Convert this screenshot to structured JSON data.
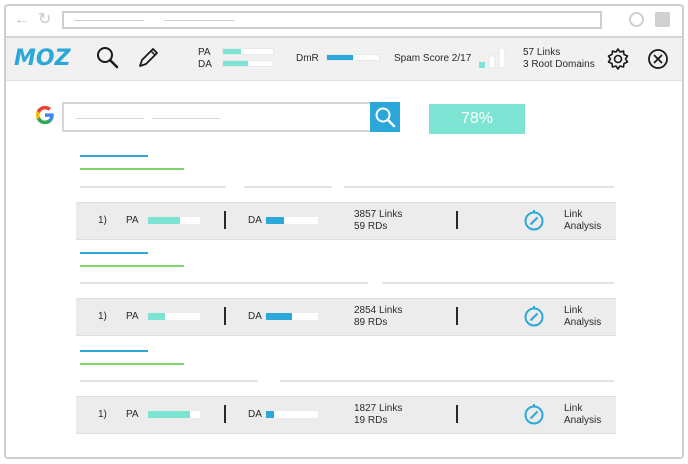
{
  "browser": {
    "back_icon": "back-arrow-icon",
    "reload_icon": "reload-icon"
  },
  "mozbar": {
    "logo": "MOZ",
    "pa_label": "PA",
    "da_label": "DA",
    "pa_level": 0.35,
    "da_level": 0.5,
    "dmr_label": "DmR",
    "dmr_level": 0.5,
    "spam_label": "Spam Score 2/17",
    "links_line1": "57 Links",
    "links_line2": "3 Root Domains",
    "accent": "#2ba8d9",
    "teal": "#7de3d2"
  },
  "search": {
    "percent": "78%"
  },
  "results": [
    {
      "rank": "1)",
      "pa_label": "PA",
      "pa_level": 0.62,
      "da_label": "DA",
      "da_level": 0.35,
      "links": "3857 Links",
      "rds": "59 RDs",
      "analysis_1": "Link",
      "analysis_2": "Analysis"
    },
    {
      "rank": "1)",
      "pa_label": "PA",
      "pa_level": 0.32,
      "da_label": "DA",
      "da_level": 0.5,
      "links": "2854 Links",
      "rds": "89 RDs",
      "analysis_1": "Link",
      "analysis_2": "Analysis"
    },
    {
      "rank": "1)",
      "pa_label": "PA",
      "pa_level": 0.8,
      "da_label": "DA",
      "da_level": 0.15,
      "links": "1827 Links",
      "rds": "19 RDs",
      "analysis_1": "Link",
      "analysis_2": "Analysis"
    }
  ]
}
